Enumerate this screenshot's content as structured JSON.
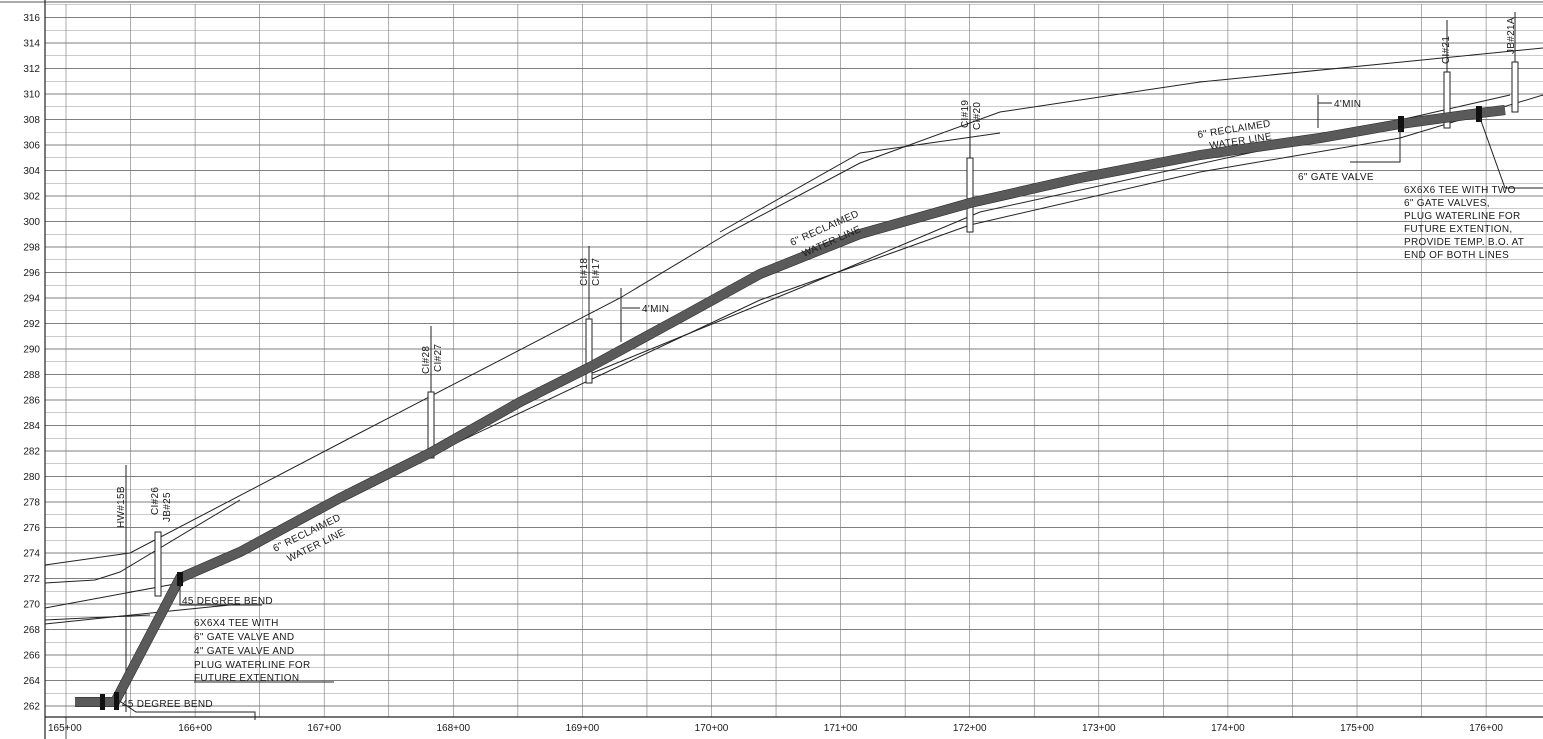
{
  "elevation_labels": [
    "262",
    "264",
    "266",
    "268",
    "270",
    "272",
    "274",
    "276",
    "278",
    "280",
    "282",
    "284",
    "286",
    "288",
    "290",
    "292",
    "294",
    "296",
    "298",
    "300",
    "302",
    "304",
    "306",
    "308",
    "310",
    "312",
    "314",
    "316"
  ],
  "station_labels": [
    "165+00",
    "166+00",
    "167+00",
    "168+00",
    "169+00",
    "170+00",
    "171+00",
    "172+00",
    "173+00",
    "174+00",
    "175+00",
    "176+00"
  ],
  "structures": {
    "hw15b": "HW#15B",
    "ci26": "CI#26",
    "jb25": "JB#25",
    "ci28": "CI#28",
    "ci27": "CI#27",
    "ci18": "CI#18",
    "ci17": "CI#17",
    "ci19": "CI#19",
    "ci20": "CI#20",
    "ci21": "CI#21",
    "jb21a": "JB#21A"
  },
  "pipe_labels": {
    "left_line1": "6\" RECLAIMED",
    "left_line2": "WATER LINE",
    "mid_line1": "6\" RECLAIMED",
    "mid_line2": "WATER LINE",
    "right_line1": "6\" RECLAIMED",
    "right_line2": "WATER LINE"
  },
  "cover_labels": {
    "min_mid": "4'MIN",
    "min_right": "4'MIN"
  },
  "notes": {
    "bend_upper": "45 DEGREE BEND",
    "bend_lower": "45 DEGREE BEND",
    "tee_left": [
      "6X6X4 TEE WITH",
      "6\" GATE VALVE AND",
      "4\" GATE VALVE AND",
      "PLUG WATERLINE FOR",
      "FUTURE EXTENTION"
    ],
    "gate_valve": "6\" GATE VALVE",
    "tee_right": [
      "6X6X6 TEE WITH TWO",
      "6\" GATE VALVES,",
      "PLUG WATERLINE FOR",
      "FUTURE EXTENTION,",
      "PROVIDE TEMP. B.O. AT",
      "END OF BOTH LINES"
    ]
  }
}
